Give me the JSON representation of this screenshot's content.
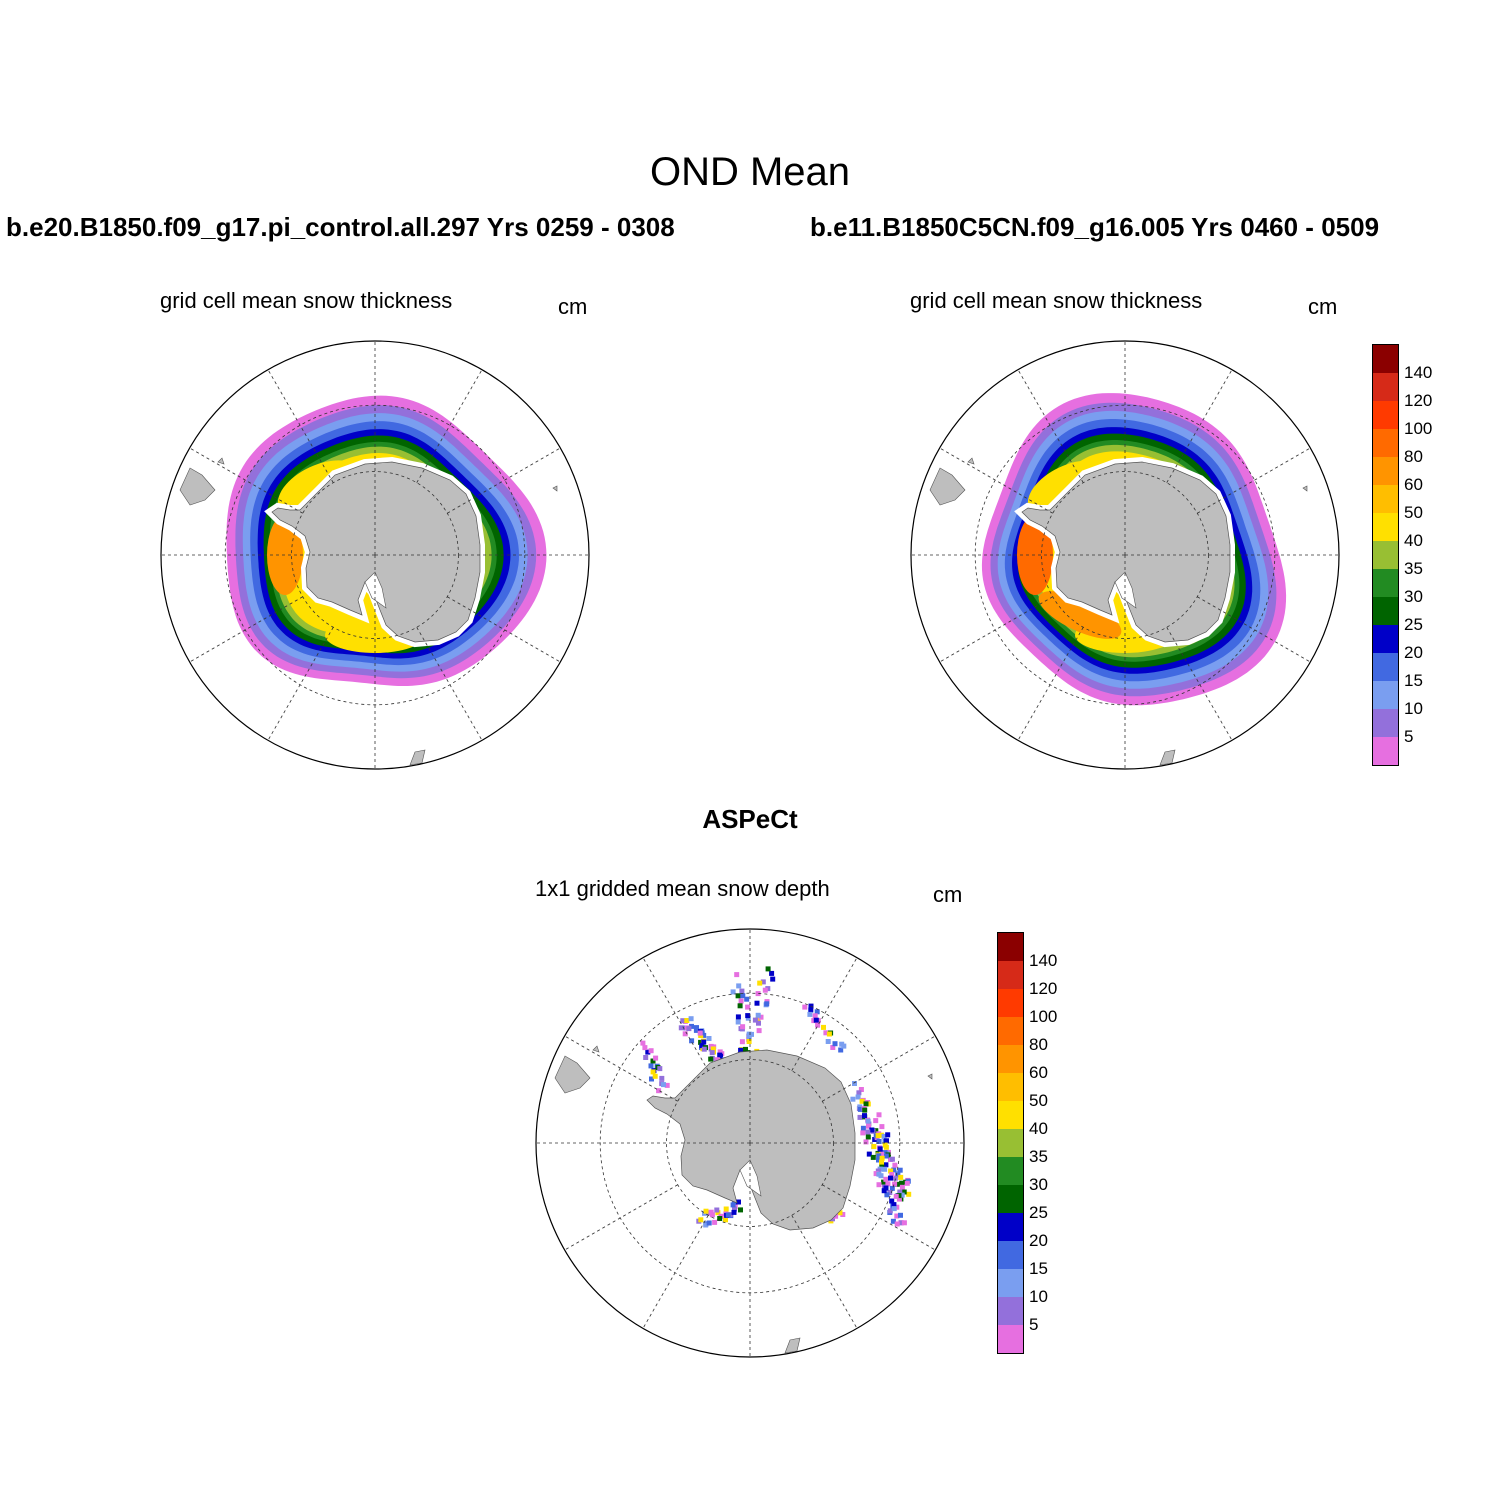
{
  "title": "OND Mean",
  "panels": [
    {
      "id": "p1",
      "case_title": "b.e20.B1850.f09_g17.pi_control.all.297  Yrs 0259 - 0308",
      "variable": "grid cell mean snow thickness",
      "units": "cm"
    },
    {
      "id": "p2",
      "case_title": "b.e11.B1850C5CN.f09_g16.005  Yrs 0460 - 0509",
      "variable": "grid cell mean snow thickness",
      "units": "cm"
    },
    {
      "id": "p3",
      "case_title": "ASPeCt",
      "variable": "1x1 gridded mean snow depth",
      "units": "cm"
    }
  ],
  "colorbar": {
    "labels": [
      "5",
      "10",
      "15",
      "20",
      "25",
      "30",
      "35",
      "40",
      "50",
      "60",
      "80",
      "100",
      "120",
      "140"
    ],
    "colors_top_to_bottom": [
      "#8b0000",
      "#d62a18",
      "#ff3a00",
      "#ff6a00",
      "#ff9400",
      "#ffbe00",
      "#ffe000",
      "#98bf33",
      "#228b22",
      "#006400",
      "#0000c8",
      "#4169e1",
      "#7a9ef0",
      "#9370db",
      "#e66fe0"
    ]
  },
  "map_colors": {
    "land": "#bebebe",
    "grid": "#333333"
  }
}
